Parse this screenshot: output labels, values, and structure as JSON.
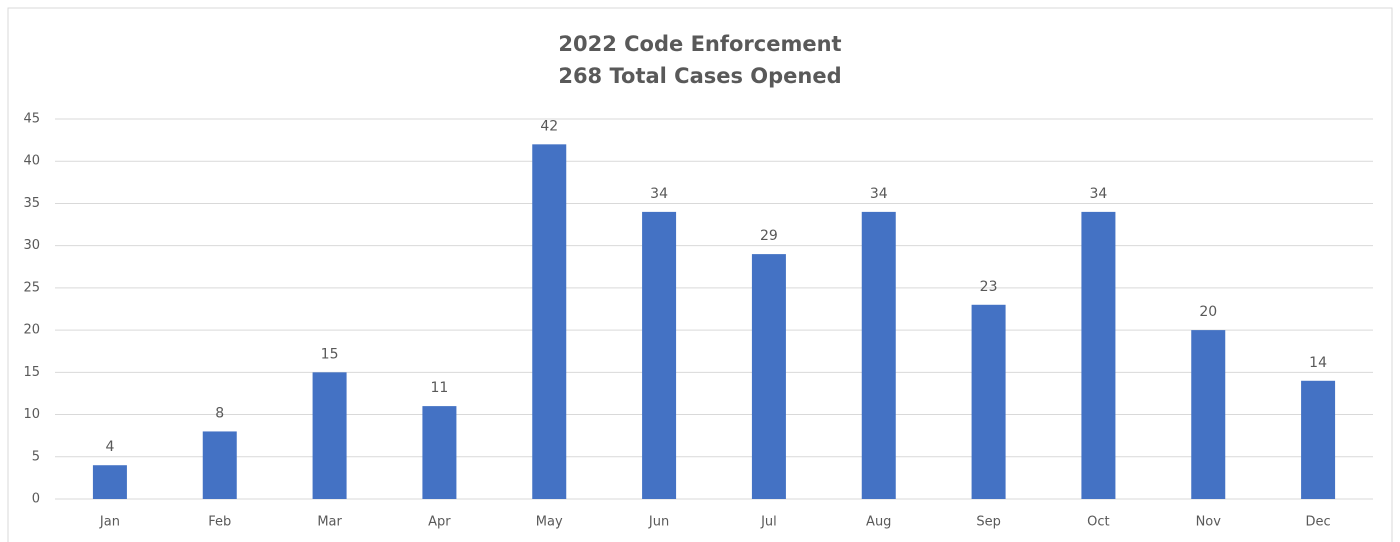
{
  "chart_data": {
    "type": "bar",
    "title": "2022 Code Enforcement",
    "subtitle": "268 Total Cases Opened",
    "categories": [
      "Jan",
      "Feb",
      "Mar",
      "Apr",
      "May",
      "Jun",
      "Jul",
      "Aug",
      "Sep",
      "Oct",
      "Nov",
      "Dec"
    ],
    "values": [
      4,
      8,
      15,
      11,
      42,
      34,
      29,
      34,
      23,
      34,
      20,
      14
    ],
    "color": "#4472c4",
    "ylim": [
      0,
      45
    ],
    "yticks": [
      0,
      5,
      10,
      15,
      20,
      25,
      30,
      35,
      40,
      45
    ],
    "grid": true
  }
}
